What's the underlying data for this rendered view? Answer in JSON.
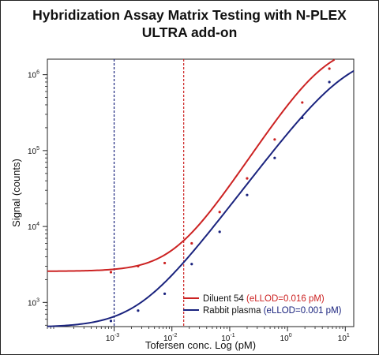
{
  "chart_data": {
    "type": "scatter",
    "title_line1": "Hybridization Assay Matrix Testing with N-PLEX",
    "title_line2": "ULTRA add-on",
    "xlabel": "Tofersen conc. Log (pM)",
    "ylabel": "Signal (counts)",
    "x_scale": "log",
    "y_scale": "log",
    "xlim": [
      7e-05,
      14
    ],
    "ylim": [
      480,
      1600000
    ],
    "x_ticks": [
      {
        "value": 0.001,
        "base": "10",
        "exp": "-3"
      },
      {
        "value": 0.01,
        "base": "10",
        "exp": "-2"
      },
      {
        "value": 0.1,
        "base": "10",
        "exp": "-1"
      },
      {
        "value": 1,
        "base": "10",
        "exp": "0"
      },
      {
        "value": 10,
        "base": "10",
        "exp": "1"
      }
    ],
    "y_ticks": [
      {
        "value": 1000,
        "base": "10",
        "exp": "3"
      },
      {
        "value": 10000,
        "base": "10",
        "exp": "4"
      },
      {
        "value": 100000,
        "base": "10",
        "exp": "5"
      },
      {
        "value": 1000000,
        "base": "10",
        "exp": "6"
      }
    ],
    "grid": false,
    "legend_position": "bottom-right",
    "series": [
      {
        "name": "Diluent 54",
        "annotation": "(eLLOD=0.016 pM)",
        "color": "#cc2222",
        "lllod": 0.016,
        "points": [
          {
            "x": 0.00088,
            "y": 2500
          },
          {
            "x": 0.0026,
            "y": 3000
          },
          {
            "x": 0.0075,
            "y": 3300
          },
          {
            "x": 0.022,
            "y": 6000
          },
          {
            "x": 0.067,
            "y": 15500
          },
          {
            "x": 0.2,
            "y": 43000
          },
          {
            "x": 0.6,
            "y": 140000
          },
          {
            "x": 1.8,
            "y": 430000
          },
          {
            "x": 5.3,
            "y": 1200000
          }
        ],
        "fit": {
          "bottom": 2570,
          "top": 2600000,
          "ec50": 4.5,
          "hill": 1.15
        }
      },
      {
        "name": "Rabbit plasma",
        "annotation": "(eLLOD=0.001 pM)",
        "color": "#1a237e",
        "lllod": 0.001,
        "points": [
          {
            "x": 0.00088,
            "y": 570
          },
          {
            "x": 0.0026,
            "y": 780
          },
          {
            "x": 0.0075,
            "y": 1300
          },
          {
            "x": 0.022,
            "y": 3200
          },
          {
            "x": 0.067,
            "y": 8500
          },
          {
            "x": 0.2,
            "y": 26000
          },
          {
            "x": 0.6,
            "y": 80000
          },
          {
            "x": 1.8,
            "y": 270000
          },
          {
            "x": 5.3,
            "y": 800000
          }
        ],
        "fit": {
          "bottom": 470,
          "top": 2000000,
          "ec50": 11,
          "hill": 1.0
        }
      }
    ]
  }
}
